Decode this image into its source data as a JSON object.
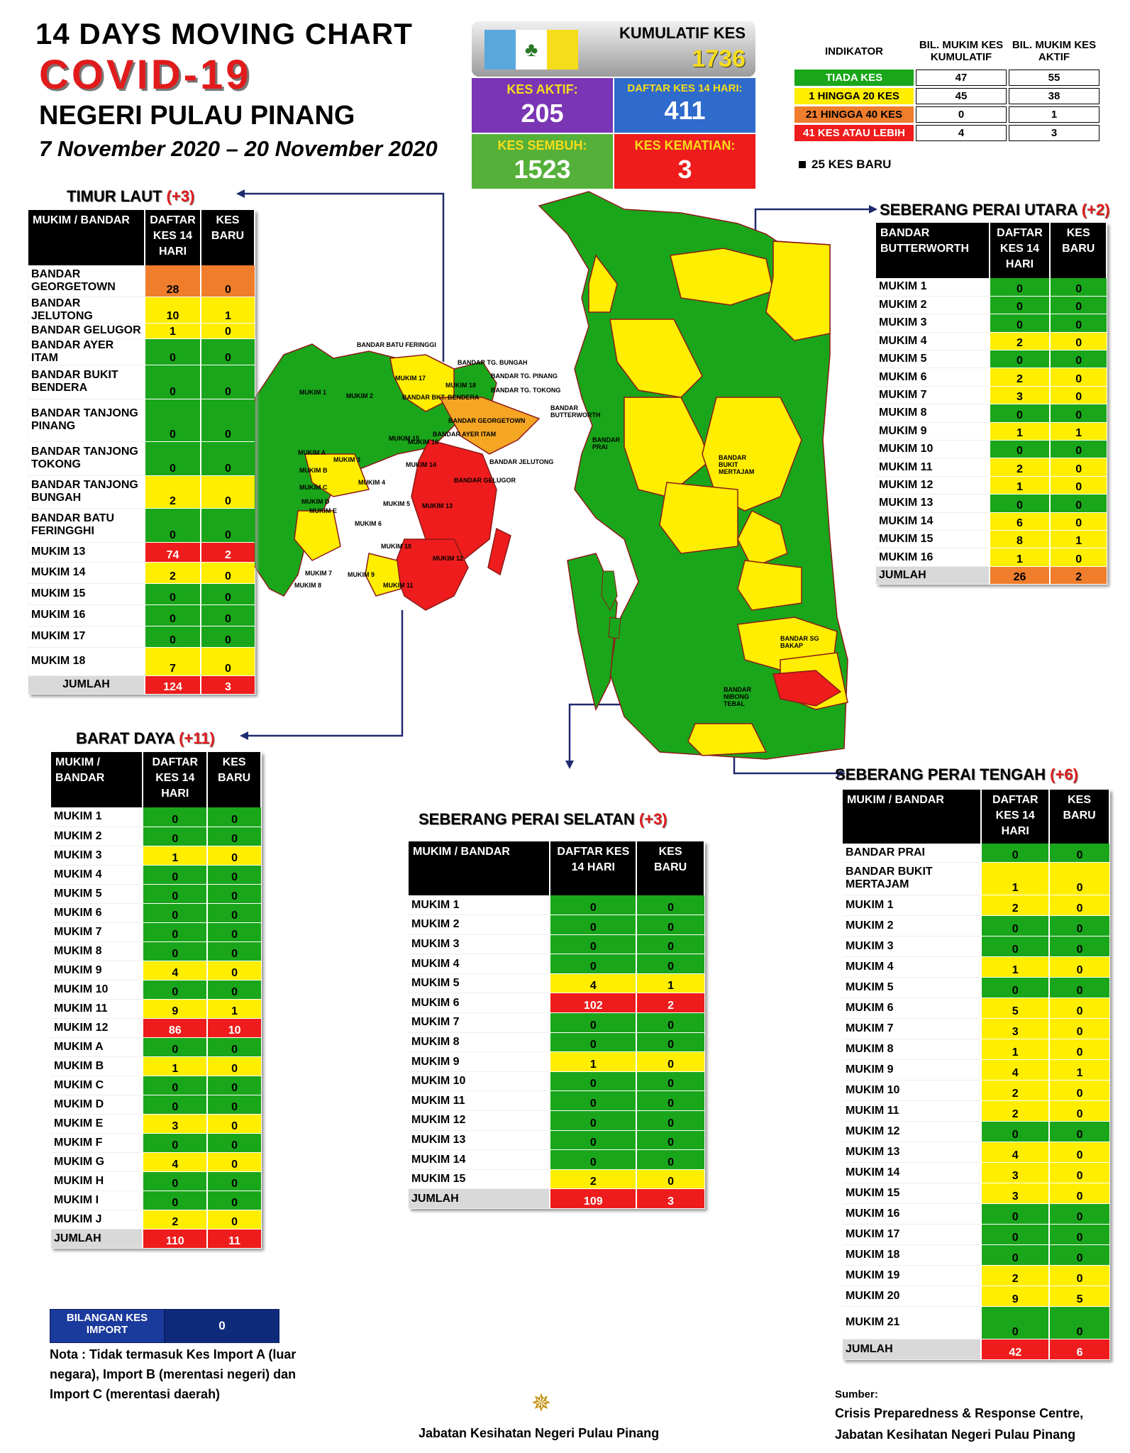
{
  "header": {
    "line1": "14  DAYS MOVING CHART",
    "covid": "COVID-19",
    "state": "NEGERI PULAU PINANG",
    "date_range": "7 November 2020 – 20 November 2020"
  },
  "summary": {
    "cumulative_label": "KUMULATIF KES",
    "cumulative_value": "1736",
    "active_label": "KES AKTIF:",
    "active_value": "205",
    "list14_label": "DAFTAR KES 14 HARI:",
    "list14_value": "411",
    "recovered_label": "KES SEMBUH:",
    "recovered_value": "1523",
    "deaths_label": "KES KEMATIAN:",
    "deaths_value": "3"
  },
  "indicator": {
    "head": [
      "INDIKATOR",
      "BIL. MUKIM KES KUMULATIF",
      "BIL. MUKIM KES AKTIF"
    ],
    "rows": [
      {
        "label": "TIADA KES",
        "cum": "47",
        "act": "55",
        "color": "#1aa61a",
        "fg": "#ffffff"
      },
      {
        "label": "1 HINGGA 20 KES",
        "cum": "45",
        "act": "38",
        "color": "#ffee00",
        "fg": "#000000"
      },
      {
        "label": "21 HINGGA 40 KES",
        "cum": "0",
        "act": "1",
        "color": "#ef7d2c",
        "fg": "#000000"
      },
      {
        "label": "41 KES ATAU LEBIH",
        "cum": "4",
        "act": "3",
        "color": "#ee1c1c",
        "fg": "#ffffff"
      }
    ],
    "legend_new": "25 KES BARU"
  },
  "timur_laut": {
    "title": "TIMUR LAUT ",
    "inc": "(+3)",
    "head": [
      "MUKIM / BANDAR",
      "DAFTAR KES 14 HARI",
      "KES BARU"
    ],
    "rows": [
      {
        "name": "BANDAR GEORGETOWN",
        "d": "28",
        "k": "0",
        "c": "o",
        "ck": "o",
        "h": 44
      },
      {
        "name": "BANDAR JELUTONG",
        "d": "10",
        "k": "1",
        "c": "y",
        "ck": "y",
        "h": 28
      },
      {
        "name": "BANDAR GELUGOR",
        "d": "1",
        "k": "0",
        "c": "y",
        "ck": "y",
        "h": 22
      },
      {
        "name": "BANDAR AYER ITAM",
        "d": "0",
        "k": "0",
        "c": "g",
        "ck": "g",
        "h": 22
      },
      {
        "name": "BANDAR BUKIT BENDERA",
        "d": "0",
        "k": "0",
        "c": "g",
        "ck": "g",
        "h": 48
      },
      {
        "name": "BANDAR TANJONG PINANG",
        "d": "0",
        "k": "0",
        "c": "g",
        "ck": "g",
        "h": 60
      },
      {
        "name": "BANDAR TANJONG TOKONG",
        "d": "0",
        "k": "0",
        "c": "g",
        "ck": "g",
        "h": 48
      },
      {
        "name": "BANDAR TANJONG BUNGAH",
        "d": "2",
        "k": "0",
        "c": "y",
        "ck": "y",
        "h": 46
      },
      {
        "name": "BANDAR BATU FERINGGHI",
        "d": "0",
        "k": "0",
        "c": "g",
        "ck": "g",
        "h": 48
      },
      {
        "name": "MUKIM 13",
        "d": "74",
        "k": "2",
        "c": "r",
        "ck": "r",
        "h": 28
      },
      {
        "name": "MUKIM 14",
        "d": "2",
        "k": "0",
        "c": "y",
        "ck": "y",
        "h": 30
      },
      {
        "name": "MUKIM 15",
        "d": "0",
        "k": "0",
        "c": "g",
        "ck": "g",
        "h": 30
      },
      {
        "name": "MUKIM 16",
        "d": "0",
        "k": "0",
        "c": "g",
        "ck": "g",
        "h": 30
      },
      {
        "name": "MUKIM 17",
        "d": "0",
        "k": "0",
        "c": "g",
        "ck": "g",
        "h": 30
      },
      {
        "name": "MUKIM 18",
        "d": "7",
        "k": "0",
        "c": "y",
        "ck": "y",
        "h": 40
      }
    ],
    "total": {
      "name": "JUMLAH",
      "d": "124",
      "k": "3"
    }
  },
  "barat_daya": {
    "title": "BARAT DAYA ",
    "inc": "(+11)",
    "head": [
      "MUKIM / BANDAR",
      "DAFTAR KES 14 HARI",
      "KES BARU"
    ],
    "rows": [
      {
        "name": "MUKIM 1",
        "d": "0",
        "k": "0",
        "c": "g",
        "ck": "g"
      },
      {
        "name": "MUKIM 2",
        "d": "0",
        "k": "0",
        "c": "g",
        "ck": "g"
      },
      {
        "name": "MUKIM 3",
        "d": "1",
        "k": "0",
        "c": "y",
        "ck": "y"
      },
      {
        "name": "MUKIM 4",
        "d": "0",
        "k": "0",
        "c": "g",
        "ck": "g"
      },
      {
        "name": "MUKIM 5",
        "d": "0",
        "k": "0",
        "c": "g",
        "ck": "g"
      },
      {
        "name": "MUKIM 6",
        "d": "0",
        "k": "0",
        "c": "g",
        "ck": "g"
      },
      {
        "name": "MUKIM 7",
        "d": "0",
        "k": "0",
        "c": "g",
        "ck": "g"
      },
      {
        "name": "MUKIM 8",
        "d": "0",
        "k": "0",
        "c": "g",
        "ck": "g"
      },
      {
        "name": "MUKIM 9",
        "d": "4",
        "k": "0",
        "c": "y",
        "ck": "y"
      },
      {
        "name": "MUKIM 10",
        "d": "0",
        "k": "0",
        "c": "g",
        "ck": "g"
      },
      {
        "name": "MUKIM 11",
        "d": "9",
        "k": "1",
        "c": "y",
        "ck": "y"
      },
      {
        "name": "MUKIM 12",
        "d": "86",
        "k": "10",
        "c": "r",
        "ck": "r"
      },
      {
        "name": "MUKIM A",
        "d": "0",
        "k": "0",
        "c": "g",
        "ck": "g"
      },
      {
        "name": "MUKIM B",
        "d": "1",
        "k": "0",
        "c": "y",
        "ck": "y"
      },
      {
        "name": "MUKIM C",
        "d": "0",
        "k": "0",
        "c": "g",
        "ck": "g"
      },
      {
        "name": "MUKIM D",
        "d": "0",
        "k": "0",
        "c": "g",
        "ck": "g"
      },
      {
        "name": "MUKIM E",
        "d": "3",
        "k": "0",
        "c": "y",
        "ck": "y"
      },
      {
        "name": "MUKIM F",
        "d": "0",
        "k": "0",
        "c": "g",
        "ck": "g"
      },
      {
        "name": "MUKIM G",
        "d": "4",
        "k": "0",
        "c": "y",
        "ck": "y"
      },
      {
        "name": "MUKIM H",
        "d": "0",
        "k": "0",
        "c": "g",
        "ck": "g"
      },
      {
        "name": "MUKIM I",
        "d": "0",
        "k": "0",
        "c": "g",
        "ck": "g"
      },
      {
        "name": "MUKIM J",
        "d": "2",
        "k": "0",
        "c": "y",
        "ck": "y"
      }
    ],
    "total": {
      "name": "JUMLAH",
      "d": "110",
      "k": "11"
    }
  },
  "spu": {
    "title": "SEBERANG PERAI UTARA ",
    "inc": "(+2)",
    "head": [
      "BANDAR BUTTERWORTH",
      "DAFTAR KES 14 HARI",
      "KES BARU"
    ],
    "rows": [
      {
        "name": "MUKIM 1",
        "d": "0",
        "k": "0",
        "c": "g",
        "ck": "g"
      },
      {
        "name": "MUKIM 2",
        "d": "0",
        "k": "0",
        "c": "g",
        "ck": "g"
      },
      {
        "name": "MUKIM 3",
        "d": "0",
        "k": "0",
        "c": "g",
        "ck": "g"
      },
      {
        "name": "MUKIM 4",
        "d": "2",
        "k": "0",
        "c": "y",
        "ck": "y"
      },
      {
        "name": "MUKIM 5",
        "d": "0",
        "k": "0",
        "c": "g",
        "ck": "g"
      },
      {
        "name": "MUKIM 6",
        "d": "2",
        "k": "0",
        "c": "y",
        "ck": "y"
      },
      {
        "name": "MUKIM 7",
        "d": "3",
        "k": "0",
        "c": "y",
        "ck": "y"
      },
      {
        "name": "MUKIM 8",
        "d": "0",
        "k": "0",
        "c": "g",
        "ck": "g"
      },
      {
        "name": "MUKIM 9",
        "d": "1",
        "k": "1",
        "c": "y",
        "ck": "y"
      },
      {
        "name": "MUKIM 10",
        "d": "0",
        "k": "0",
        "c": "g",
        "ck": "g"
      },
      {
        "name": "MUKIM 11",
        "d": "2",
        "k": "0",
        "c": "y",
        "ck": "y"
      },
      {
        "name": "MUKIM 12",
        "d": "1",
        "k": "0",
        "c": "y",
        "ck": "y"
      },
      {
        "name": "MUKIM 13",
        "d": "0",
        "k": "0",
        "c": "g",
        "ck": "g"
      },
      {
        "name": "MUKIM 14",
        "d": "6",
        "k": "0",
        "c": "y",
        "ck": "y"
      },
      {
        "name": "MUKIM 15",
        "d": "8",
        "k": "1",
        "c": "y",
        "ck": "y"
      },
      {
        "name": "MUKIM 16",
        "d": "1",
        "k": "0",
        "c": "y",
        "ck": "y"
      }
    ],
    "total": {
      "name": "JUMLAH",
      "d": "26",
      "k": "2",
      "c": "o"
    }
  },
  "sps": {
    "title": "SEBERANG PERAI SELATAN ",
    "inc": "(+3)",
    "head": [
      "MUKIM / BANDAR",
      "DAFTAR KES 14 HARI",
      "KES BARU"
    ],
    "rows": [
      {
        "name": "MUKIM 1",
        "d": "0",
        "k": "0",
        "c": "g",
        "ck": "g"
      },
      {
        "name": "MUKIM 2",
        "d": "0",
        "k": "0",
        "c": "g",
        "ck": "g"
      },
      {
        "name": "MUKIM 3",
        "d": "0",
        "k": "0",
        "c": "g",
        "ck": "g"
      },
      {
        "name": "MUKIM 4",
        "d": "0",
        "k": "0",
        "c": "g",
        "ck": "g"
      },
      {
        "name": "MUKIM 5",
        "d": "4",
        "k": "1",
        "c": "y",
        "ck": "y"
      },
      {
        "name": "MUKIM 6",
        "d": "102",
        "k": "2",
        "c": "r",
        "ck": "r"
      },
      {
        "name": "MUKIM 7",
        "d": "0",
        "k": "0",
        "c": "g",
        "ck": "g"
      },
      {
        "name": "MUKIM 8",
        "d": "0",
        "k": "0",
        "c": "g",
        "ck": "g"
      },
      {
        "name": "MUKIM 9",
        "d": "1",
        "k": "0",
        "c": "y",
        "ck": "y"
      },
      {
        "name": "MUKIM 10",
        "d": "0",
        "k": "0",
        "c": "g",
        "ck": "g"
      },
      {
        "name": "MUKIM 11",
        "d": "0",
        "k": "0",
        "c": "g",
        "ck": "g"
      },
      {
        "name": "MUKIM 12",
        "d": "0",
        "k": "0",
        "c": "g",
        "ck": "g"
      },
      {
        "name": "MUKIM 13",
        "d": "0",
        "k": "0",
        "c": "g",
        "ck": "g"
      },
      {
        "name": "MUKIM 14",
        "d": "0",
        "k": "0",
        "c": "g",
        "ck": "g"
      },
      {
        "name": "MUKIM 15",
        "d": "2",
        "k": "0",
        "c": "y",
        "ck": "y"
      }
    ],
    "total": {
      "name": "JUMLAH",
      "d": "109",
      "k": "3"
    }
  },
  "spt": {
    "title": "SEBERANG PERAI TENGAH ",
    "inc": "(+6)",
    "head": [
      "MUKIM / BANDAR",
      "DAFTAR KES 14 HARI",
      "KES BARU"
    ],
    "rows": [
      {
        "name": "BANDAR PRAI",
        "d": "0",
        "k": "0",
        "c": "g",
        "ck": "g",
        "h": 26
      },
      {
        "name": "BANDAR BUKIT MERTAJAM",
        "d": "1",
        "k": "0",
        "c": "y",
        "ck": "y",
        "h": 46
      },
      {
        "name": "MUKIM 1",
        "d": "2",
        "k": "0",
        "c": "y",
        "ck": "y",
        "h": 29
      },
      {
        "name": "MUKIM 2",
        "d": "0",
        "k": "0",
        "c": "g",
        "ck": "g",
        "h": 29
      },
      {
        "name": "MUKIM 3",
        "d": "0",
        "k": "0",
        "c": "g",
        "ck": "g",
        "h": 29
      },
      {
        "name": "MUKIM 4",
        "d": "1",
        "k": "0",
        "c": "y",
        "ck": "y",
        "h": 29
      },
      {
        "name": "MUKIM 5",
        "d": "0",
        "k": "0",
        "c": "g",
        "ck": "g",
        "h": 29
      },
      {
        "name": "MUKIM 6",
        "d": "5",
        "k": "0",
        "c": "y",
        "ck": "y",
        "h": 29
      },
      {
        "name": "MUKIM 7",
        "d": "3",
        "k": "0",
        "c": "y",
        "ck": "y",
        "h": 29
      },
      {
        "name": "MUKIM 8",
        "d": "1",
        "k": "0",
        "c": "y",
        "ck": "y",
        "h": 29
      },
      {
        "name": "MUKIM 9",
        "d": "4",
        "k": "1",
        "c": "y",
        "ck": "y",
        "h": 29
      },
      {
        "name": "MUKIM 10",
        "d": "2",
        "k": "0",
        "c": "y",
        "ck": "y",
        "h": 29
      },
      {
        "name": "MUKIM 11",
        "d": "2",
        "k": "0",
        "c": "y",
        "ck": "y",
        "h": 29
      },
      {
        "name": "MUKIM 12",
        "d": "0",
        "k": "0",
        "c": "g",
        "ck": "g",
        "h": 29
      },
      {
        "name": "MUKIM 13",
        "d": "4",
        "k": "0",
        "c": "y",
        "ck": "y",
        "h": 29
      },
      {
        "name": "MUKIM 14",
        "d": "3",
        "k": "0",
        "c": "y",
        "ck": "y",
        "h": 29
      },
      {
        "name": "MUKIM 15",
        "d": "3",
        "k": "0",
        "c": "y",
        "ck": "y",
        "h": 29
      },
      {
        "name": "MUKIM 16",
        "d": "0",
        "k": "0",
        "c": "g",
        "ck": "g",
        "h": 29
      },
      {
        "name": "MUKIM 17",
        "d": "0",
        "k": "0",
        "c": "g",
        "ck": "g",
        "h": 29
      },
      {
        "name": "MUKIM 18",
        "d": "0",
        "k": "0",
        "c": "g",
        "ck": "g",
        "h": 29
      },
      {
        "name": "MUKIM 19",
        "d": "2",
        "k": "0",
        "c": "y",
        "ck": "y",
        "h": 29
      },
      {
        "name": "MUKIM 20",
        "d": "9",
        "k": "5",
        "c": "y",
        "ck": "y",
        "h": 29
      },
      {
        "name": "MUKIM 21",
        "d": "0",
        "k": "0",
        "c": "g",
        "ck": "g",
        "h": 46
      }
    ],
    "total": {
      "name": "JUMLAH",
      "d": "42",
      "k": "6"
    }
  },
  "import_box": {
    "label": "BILANGAN KES IMPORT",
    "value": "0"
  },
  "note": "Nota : Tidak termasuk Kes Import A (luar negara), Import B (merentasi negeri) dan Import C (merentasi daerah)",
  "footer": {
    "dept": "Jabatan Kesihatan Negeri Pulau Pinang",
    "source_label": "Sumber:",
    "source_line1": "Crisis Preparedness & Response Centre,",
    "source_line2": "Jabatan Kesihatan Negeri Pulau Pinang"
  },
  "map_labels": {
    "island": [
      "BANDAR BATU FERINGGI",
      "BANDAR TG. BUNGAH",
      "BANDAR TG. PINANG",
      "BANDAR TG. TOKONG",
      "BANDAR BKT. BENDERA",
      "BANDAR GEORGETOWN",
      "BANDAR AYER ITAM",
      "BANDAR JELUTONG",
      "BANDAR GELUGOR",
      "MUKIM 1",
      "MUKIM 2",
      "MUKIM 3",
      "MUKIM 4",
      "MUKIM 5",
      "MUKIM 6",
      "MUKIM 7",
      "MUKIM 8",
      "MUKIM 9",
      "MUKIM 10",
      "MUKIM 11",
      "MUKIM 12",
      "MUKIM 13",
      "MUKIM 14",
      "MUKIM 15",
      "MUKIM 16",
      "MUKIM 17",
      "MUKIM 18",
      "MUKIM A",
      "MUKIM B",
      "MUKIM C",
      "MUKIM D",
      "MUKIM E"
    ],
    "mainland": [
      "BANDAR BUTTERWORTH",
      "BANDAR PRAI",
      "BANDAR BUKIT MERTAJAM",
      "BANDAR SG BAKAP",
      "BANDAR NIBONG TEBAL"
    ]
  }
}
